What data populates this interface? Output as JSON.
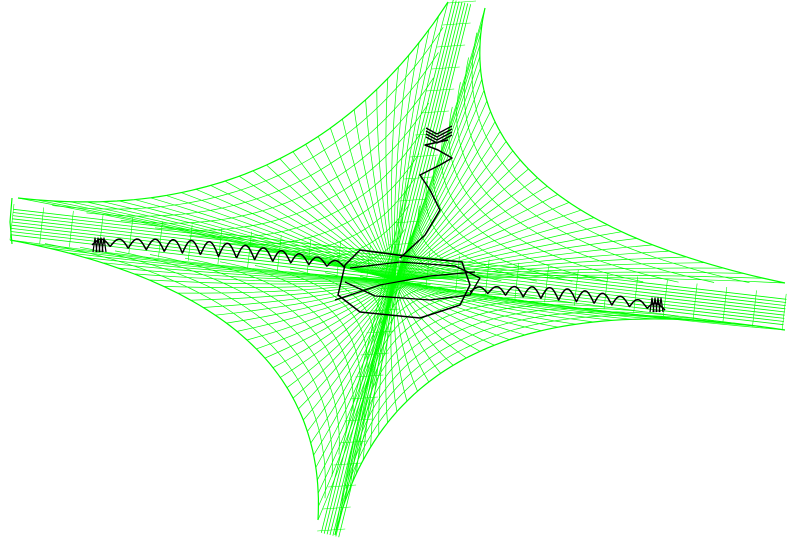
{
  "figure": {
    "kind": "3d-wireframe-surface-with-trajectory",
    "surface_color": "#00ff00",
    "trajectory_color": "#000000",
    "background_color": "#ffffff",
    "arms": [
      "left",
      "right",
      "top",
      "bottom"
    ],
    "text_labels": []
  }
}
